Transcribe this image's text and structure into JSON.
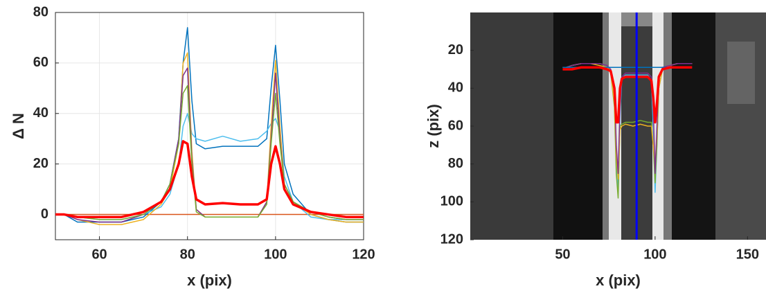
{
  "chart_data": [
    {
      "type": "line",
      "xlabel": "x (pix)",
      "ylabel": "Δ N",
      "xlim": [
        50,
        120
      ],
      "ylim": [
        -10,
        80
      ],
      "xticks": [
        60,
        80,
        100,
        120
      ],
      "yticks": [
        0,
        20,
        40,
        60,
        80
      ],
      "grid": true,
      "x": [
        50,
        52,
        55,
        60,
        65,
        70,
        74,
        76,
        78,
        79,
        80,
        81,
        82,
        84,
        88,
        92,
        96,
        98,
        99,
        100,
        101,
        102,
        104,
        108,
        112,
        116,
        120
      ],
      "series": [
        {
          "color": "#d95319",
          "linewidth": 1.5,
          "values": [
            0,
            0,
            0,
            0,
            0,
            0,
            0,
            0,
            0,
            0,
            0,
            0,
            0,
            0,
            0,
            0,
            0,
            0,
            0,
            0,
            0,
            0,
            0,
            0,
            0,
            0,
            0
          ]
        },
        {
          "color": "#0072bd",
          "linewidth": 1.5,
          "values": [
            0,
            0,
            -3,
            -3,
            -3,
            -1,
            5,
            12,
            30,
            60,
            74,
            45,
            28,
            26,
            27,
            27,
            27,
            30,
            50,
            67,
            45,
            20,
            8,
            0,
            -2,
            -3,
            -3
          ]
        },
        {
          "color": "#4dbeee",
          "linewidth": 1.5,
          "values": [
            0,
            0,
            -1,
            -2,
            -2,
            0,
            3,
            8,
            20,
            35,
            40,
            32,
            30,
            29,
            31,
            29,
            30,
            33,
            36,
            38,
            33,
            15,
            5,
            -1,
            -2,
            -2,
            -2
          ]
        },
        {
          "color": "#edb120",
          "linewidth": 1.5,
          "values": [
            0,
            0,
            -2,
            -4,
            -4,
            -2,
            4,
            10,
            28,
            60,
            64,
            25,
            2,
            -1,
            -1,
            -1,
            -1,
            5,
            35,
            61,
            35,
            12,
            5,
            0,
            -2,
            -3,
            -3
          ]
        },
        {
          "color": "#7e2f8e",
          "linewidth": 1.5,
          "values": [
            0,
            0,
            -2,
            -3,
            -3,
            0,
            5,
            12,
            30,
            55,
            58,
            22,
            2,
            -1,
            -1,
            -1,
            -1,
            5,
            30,
            56,
            30,
            12,
            5,
            1,
            -1,
            -2,
            -2
          ]
        },
        {
          "color": "#77ac30",
          "linewidth": 1.5,
          "values": [
            0,
            0,
            -1,
            -2,
            -2,
            0,
            5,
            12,
            28,
            48,
            51,
            20,
            1,
            -1,
            -1,
            -1,
            -1,
            4,
            28,
            48,
            28,
            12,
            5,
            1,
            -1,
            -2,
            -2
          ]
        },
        {
          "color": "#ff0000",
          "linewidth": 3.5,
          "values": [
            0,
            0,
            -1,
            -1,
            -1,
            1,
            5,
            10,
            20,
            29,
            28,
            15,
            6,
            4,
            4.5,
            4,
            4,
            6,
            20,
            27,
            20,
            10,
            4,
            1,
            0,
            -1,
            -1
          ]
        }
      ]
    },
    {
      "type": "line",
      "xlabel": "x (pix)",
      "ylabel": "z (pix)",
      "xlim": [
        0,
        160
      ],
      "ylim": [
        0,
        120
      ],
      "yreverse": true,
      "xticks": [
        50,
        100,
        150
      ],
      "yticks": [
        20,
        40,
        60,
        80,
        100,
        120
      ],
      "grid": false,
      "vline": {
        "x": 90,
        "color": "#0000ff"
      },
      "x": [
        50,
        52,
        55,
        60,
        65,
        70,
        74,
        76,
        78,
        79,
        80,
        81,
        82,
        84,
        88,
        92,
        96,
        98,
        99,
        100,
        101,
        102,
        104,
        108,
        112,
        116,
        120
      ],
      "series": [
        {
          "color": "#4dbeee",
          "linewidth": 1.5,
          "values": [
            29,
            29,
            28,
            27,
            27,
            27,
            28,
            30,
            45,
            80,
            95,
            55,
            35,
            33,
            33,
            33,
            33,
            36,
            60,
            95,
            70,
            40,
            30,
            28,
            27,
            27,
            27
          ]
        },
        {
          "color": "#77ac30",
          "linewidth": 1.5,
          "values": [
            29,
            29,
            28,
            27,
            27,
            27,
            28,
            32,
            50,
            85,
            98,
            60,
            59,
            58,
            58,
            57,
            58,
            58,
            70,
            90,
            70,
            40,
            30,
            28,
            27,
            27,
            27
          ]
        },
        {
          "color": "#edb120",
          "linewidth": 1.5,
          "values": [
            29,
            29,
            28,
            27,
            27,
            28,
            29,
            32,
            48,
            75,
            88,
            62,
            60,
            59,
            60,
            59,
            60,
            60,
            70,
            80,
            65,
            40,
            30,
            28,
            27,
            27,
            27
          ]
        },
        {
          "color": "#7e2f8e",
          "linewidth": 1.5,
          "values": [
            29,
            29,
            28,
            27,
            27,
            27,
            28,
            30,
            40,
            70,
            85,
            50,
            34,
            32,
            32,
            32,
            32,
            34,
            50,
            85,
            60,
            35,
            29,
            28,
            27,
            27,
            27
          ]
        },
        {
          "color": "#0072bd",
          "linewidth": 1.5,
          "values": [
            29,
            29,
            29,
            29,
            29,
            29,
            29,
            29,
            29,
            29,
            29,
            29,
            29,
            29,
            29,
            29,
            29,
            29,
            29,
            29,
            29,
            29,
            29,
            29,
            29,
            29,
            29
          ]
        },
        {
          "color": "#ff0000",
          "linewidth": 3.5,
          "values": [
            30,
            30,
            30,
            29,
            29,
            29,
            30,
            31,
            40,
            58,
            58,
            40,
            35,
            34,
            34,
            34,
            34,
            36,
            45,
            58,
            48,
            34,
            30,
            29,
            29,
            29,
            29
          ]
        }
      ]
    }
  ]
}
